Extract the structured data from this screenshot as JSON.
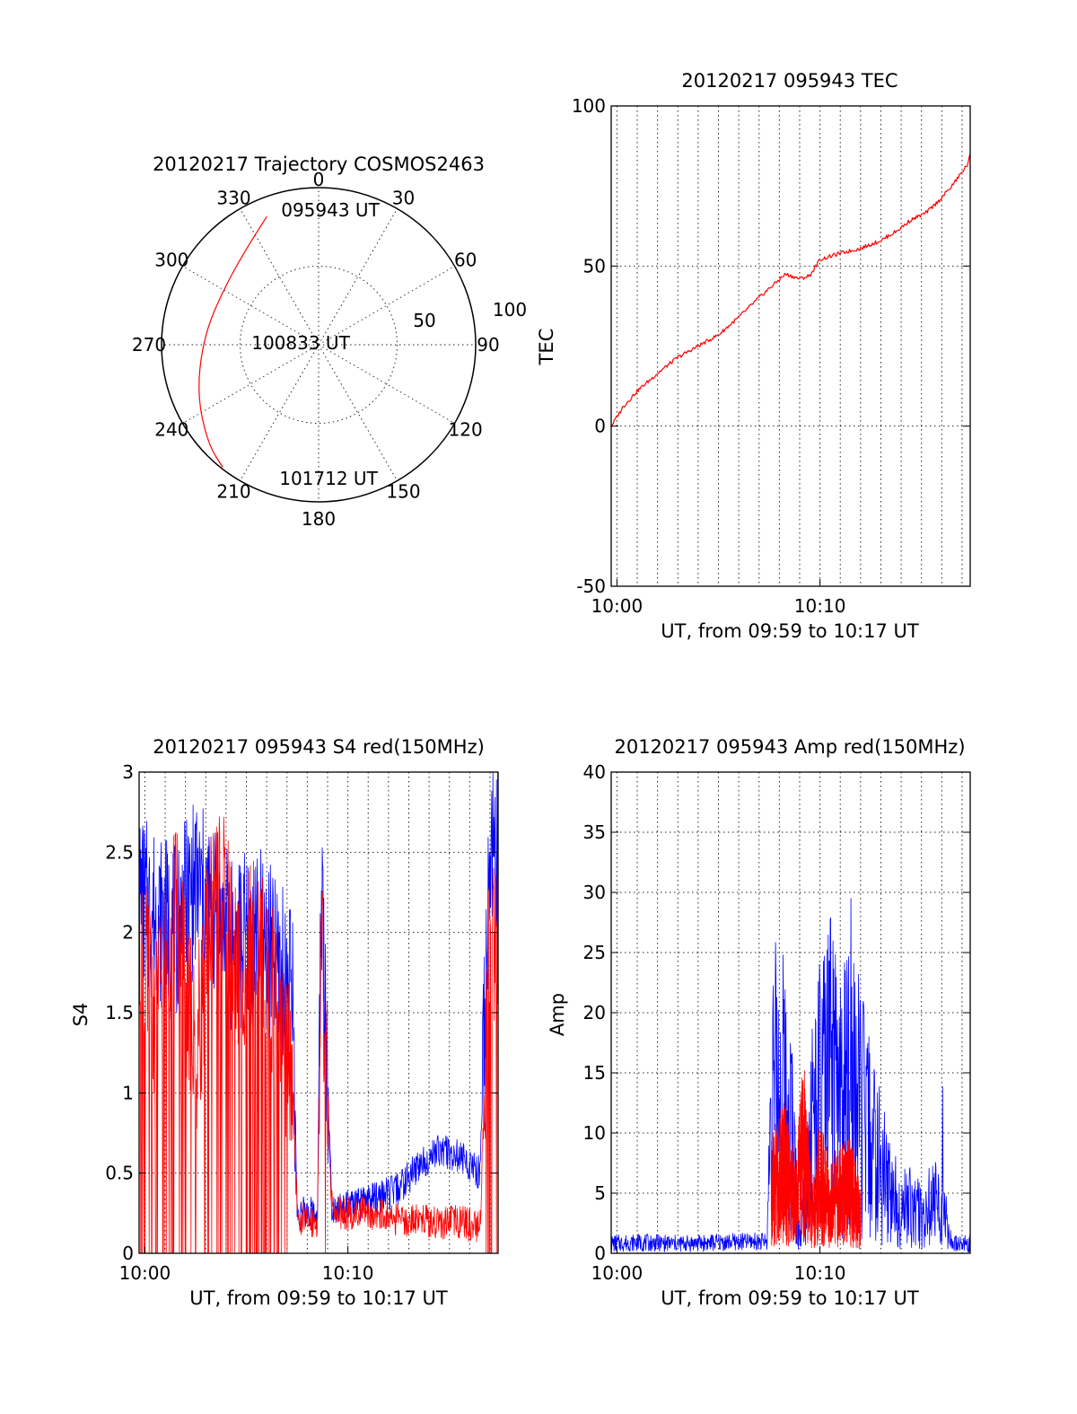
{
  "chart_data": [
    {
      "type": "polar-trajectory",
      "title": "20120217 Trajectory COSMOS2463",
      "azimuth_labels": [
        "0",
        "30",
        "60",
        "90",
        "120",
        "150",
        "180",
        "210",
        "240",
        "270",
        "300",
        "330"
      ],
      "radius_labels": [
        "50",
        "100"
      ],
      "annotations": [
        "095943 UT",
        "100833 UT",
        "101712 UT"
      ],
      "trajectory": [
        {
          "az": 338,
          "r": 88
        },
        {
          "az": 322,
          "r": 76
        },
        {
          "az": 300,
          "r": 70
        },
        {
          "az": 278,
          "r": 72
        },
        {
          "az": 258,
          "r": 78
        },
        {
          "az": 242,
          "r": 86
        },
        {
          "az": 227,
          "r": 95
        },
        {
          "az": 218,
          "r": 99
        }
      ],
      "series_color": "#ff0000"
    },
    {
      "type": "line",
      "title": "20120217 095943 TEC",
      "xlabel": "UT, from 09:59 to 10:17 UT",
      "ylabel": "TEC",
      "xlim": [
        9.717,
        27.4
      ],
      "ylim": [
        -50,
        100
      ],
      "xticks": [
        {
          "value": 10,
          "label": "10:00"
        },
        {
          "value": 20,
          "label": "10:10"
        }
      ],
      "yticks": [
        {
          "value": -50,
          "label": "-50"
        },
        {
          "value": 0,
          "label": "0"
        },
        {
          "value": 50,
          "label": "50"
        },
        {
          "value": 100,
          "label": "100"
        }
      ],
      "series": [
        {
          "color": "#ff0000",
          "x": [
            9.72,
            10.3,
            11,
            12,
            13,
            14,
            15,
            16,
            16.9,
            17.5,
            18.3,
            19,
            19.5,
            20,
            21,
            22,
            23,
            23.8,
            24.5,
            25.2,
            25.8,
            26.5,
            27.3,
            27.4
          ],
          "y": [
            0,
            6,
            11,
            16.5,
            21.5,
            25,
            28.5,
            34,
            39.5,
            43,
            47.5,
            46,
            47,
            52,
            54,
            55.5,
            58,
            61,
            64.5,
            66.5,
            70,
            75,
            82,
            85
          ]
        }
      ]
    },
    {
      "type": "line",
      "title": "20120217 095943 S4 red(150MHz)",
      "xlabel": "UT, from 09:59 to 10:17 UT",
      "ylabel": "S4",
      "xlim": [
        9.717,
        27.4
      ],
      "ylim": [
        0,
        3
      ],
      "xticks": [
        {
          "value": 10,
          "label": "10:00"
        },
        {
          "value": 20,
          "label": "10:10"
        }
      ],
      "yticks": [
        {
          "value": 0,
          "label": "0"
        },
        {
          "value": 0.5,
          "label": "0.5"
        },
        {
          "value": 1,
          "label": "1"
        },
        {
          "value": 1.5,
          "label": "1.5"
        },
        {
          "value": 2,
          "label": "2"
        },
        {
          "value": 2.5,
          "label": "2.5"
        },
        {
          "value": 3,
          "label": "3"
        }
      ],
      "series": [
        {
          "color": "#0000ff",
          "x": [
            9.72,
            10.5,
            11.5,
            12.5,
            13.5,
            14.5,
            15.5,
            16.5,
            17.3,
            17.5,
            18.5,
            18.7,
            19.2,
            19.7,
            20.5,
            21.5,
            22.5,
            23.5,
            24.5,
            25.5,
            26.5,
            27.0,
            27.4
          ],
          "y": [
            2.2,
            2.1,
            2.0,
            2.3,
            2.1,
            1.9,
            2.0,
            1.8,
            1.6,
            0.25,
            0.25,
            2.3,
            0.3,
            0.28,
            0.3,
            0.35,
            0.4,
            0.55,
            0.65,
            0.6,
            0.5,
            2.5,
            2.6
          ]
        },
        {
          "color": "#ff0000",
          "x": [
            9.72,
            10.5,
            11.5,
            12.5,
            13.5,
            14.5,
            15.5,
            16.5,
            17.3,
            17.5,
            18.5,
            18.7,
            19.2,
            19.7,
            20.5,
            21.5,
            22.5,
            23.5,
            24.5,
            25.5,
            26.5,
            27.0,
            27.4
          ],
          "y": [
            1.9,
            1.5,
            2.2,
            1.2,
            2.4,
            1.8,
            1.9,
            1.6,
            1.0,
            0.22,
            0.2,
            2.0,
            0.3,
            0.25,
            0.25,
            0.25,
            0.2,
            0.22,
            0.18,
            0.2,
            0.15,
            2.0,
            2.0
          ]
        }
      ]
    },
    {
      "type": "line",
      "title": "20120217 095943 Amp red(150MHz)",
      "xlabel": "UT, from 09:59 to 10:17 UT",
      "ylabel": "Amp",
      "xlim": [
        9.717,
        27.4
      ],
      "ylim": [
        0,
        40
      ],
      "xticks": [
        {
          "value": 10,
          "label": "10:00"
        },
        {
          "value": 20,
          "label": "10:10"
        }
      ],
      "yticks": [
        {
          "value": 0,
          "label": "0"
        },
        {
          "value": 5,
          "label": "5"
        },
        {
          "value": 10,
          "label": "10"
        },
        {
          "value": 15,
          "label": "15"
        },
        {
          "value": 20,
          "label": "20"
        },
        {
          "value": 25,
          "label": "25"
        },
        {
          "value": 30,
          "label": "30"
        },
        {
          "value": 35,
          "label": "35"
        },
        {
          "value": 40,
          "label": "40"
        }
      ],
      "series": [
        {
          "color": "#0000ff",
          "x": [
            9.72,
            11,
            13,
            15,
            17,
            17.4,
            17.6,
            18.5,
            19.0,
            19.5,
            20.0,
            20.5,
            21.0,
            21.5,
            22.0,
            22.5,
            23.0,
            23.5,
            24.0,
            24.5,
            25.0,
            25.5,
            26.0,
            26.5,
            27.4
          ],
          "y": [
            0.8,
            0.9,
            0.8,
            0.9,
            1.0,
            1.0,
            14,
            13,
            1,
            10,
            13,
            15,
            12,
            14,
            12,
            9,
            7,
            5,
            4,
            4,
            3,
            4,
            4,
            0.8,
            0.8
          ]
        },
        {
          "color": "#ff0000",
          "x": [
            17.6,
            18.2,
            18.8,
            19.2,
            19.6,
            20.0,
            20.5,
            21.0,
            21.5,
            22.0
          ],
          "y": [
            5,
            7,
            4,
            9,
            3,
            6,
            4,
            5,
            5,
            3
          ]
        }
      ]
    }
  ]
}
